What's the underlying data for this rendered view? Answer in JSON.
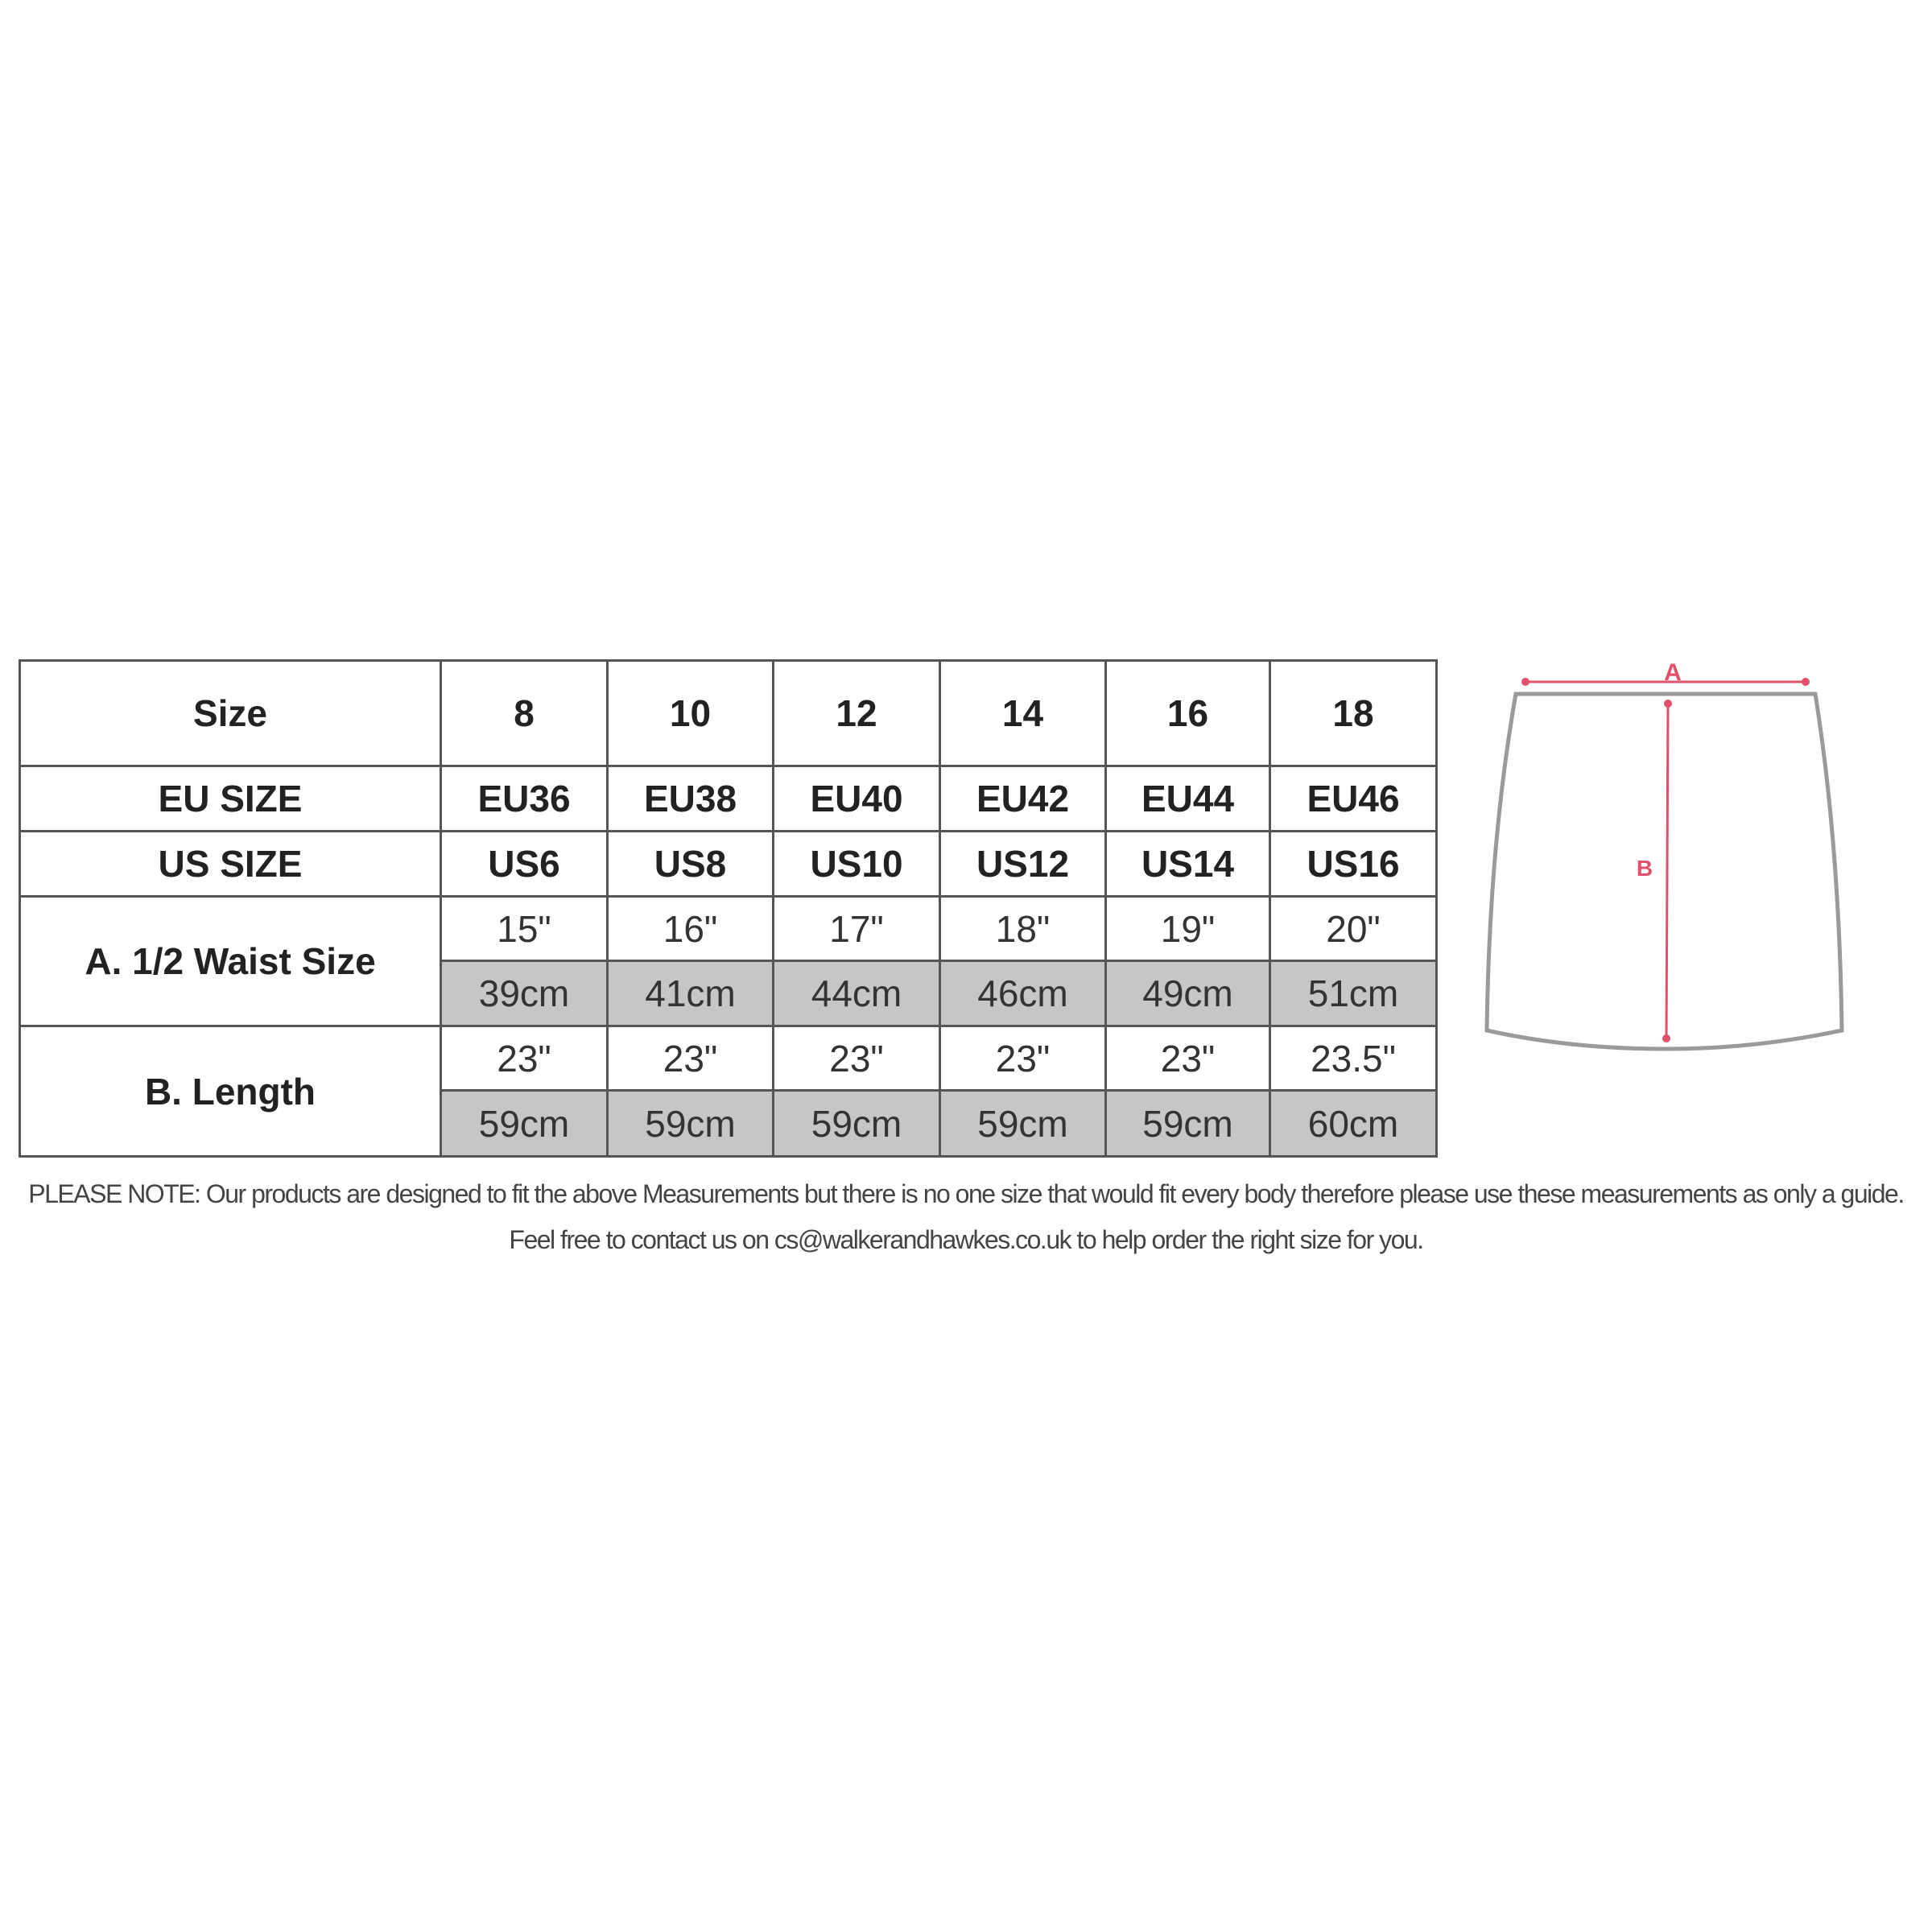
{
  "size_table": {
    "header": {
      "label": "Size",
      "values": [
        "8",
        "10",
        "12",
        "14",
        "16",
        "18"
      ]
    },
    "eu": {
      "label": "EU SIZE",
      "values": [
        "EU36",
        "EU38",
        "EU40",
        "EU42",
        "EU44",
        "EU46"
      ]
    },
    "us": {
      "label": "US SIZE",
      "values": [
        "US6",
        "US8",
        "US10",
        "US12",
        "US14",
        "US16"
      ]
    },
    "waist": {
      "label": "A. 1/2 Waist Size",
      "inches": [
        "15\"",
        "16\"",
        "17\"",
        "18\"",
        "19\"",
        "20\""
      ],
      "cm": [
        "39cm",
        "41cm",
        "44cm",
        "46cm",
        "49cm",
        "51cm"
      ]
    },
    "length": {
      "label": "B. Length",
      "inches": [
        "23\"",
        "23\"",
        "23\"",
        "23\"",
        "23\"",
        "23.5\""
      ],
      "cm": [
        "59cm",
        "59cm",
        "59cm",
        "59cm",
        "59cm",
        "60cm"
      ]
    }
  },
  "diagram": {
    "label_a": "A",
    "label_b": "B",
    "outline_color": "#9a9a9a",
    "measure_color": "#e0506a"
  },
  "note": "PLEASE NOTE: Our products are designed to fit the above Measurements but there is no one size that would fit every body therefore please use these measurements as only a guide. Feel free to contact us on cs@walkerandhawkes.co.uk to help order the right size for you."
}
